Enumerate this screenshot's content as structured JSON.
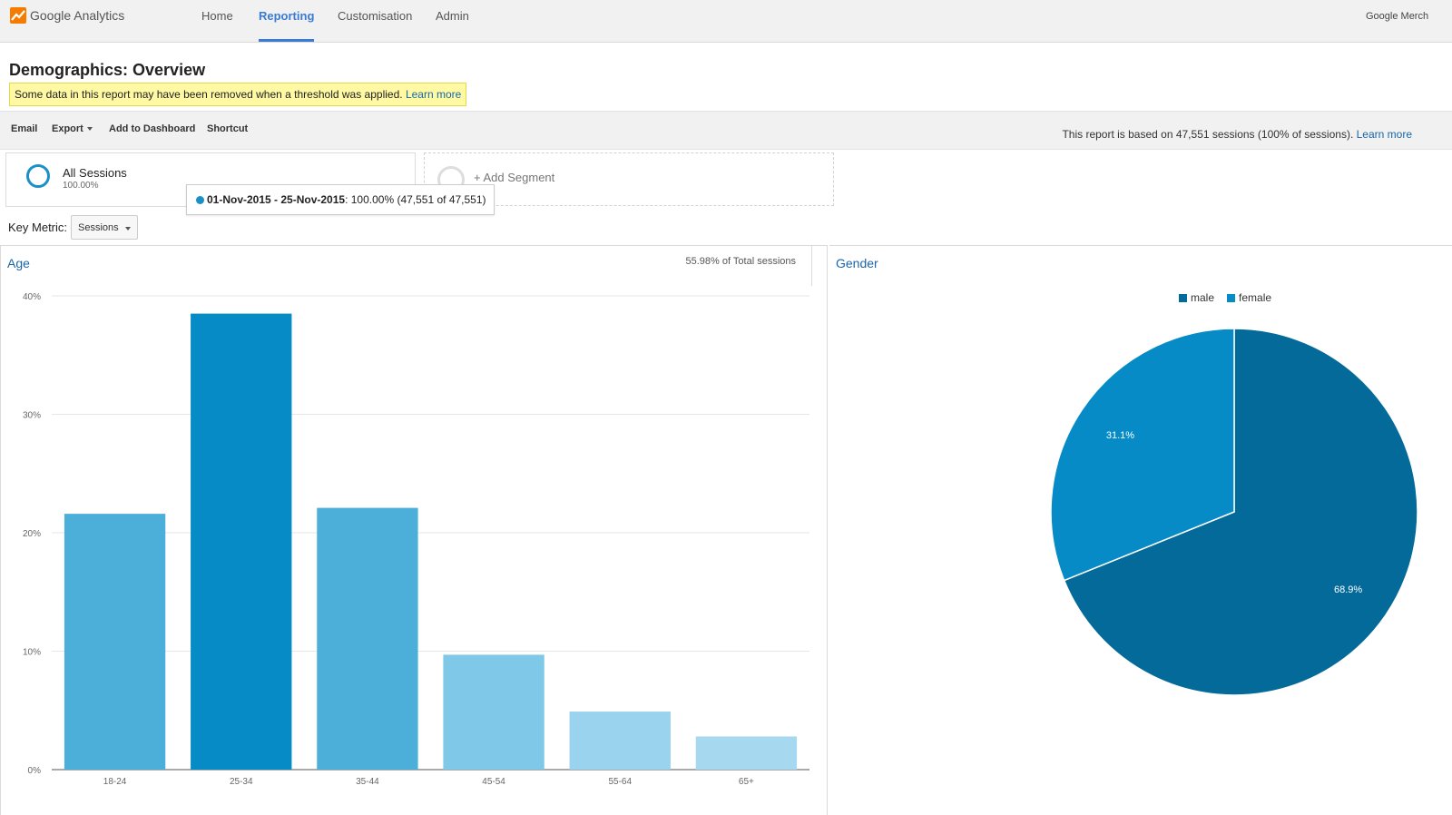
{
  "app": {
    "title": "Google Analytics",
    "account": "Google Merch"
  },
  "nav": [
    {
      "label": "Home"
    },
    {
      "label": "Reporting"
    },
    {
      "label": "Customisation"
    },
    {
      "label": "Admin"
    }
  ],
  "page": {
    "title": "Demographics: Overview",
    "notice_text": "Some data in this report may have been removed when a threshold was applied.",
    "notice_link": "Learn more"
  },
  "toolbar": {
    "email": "Email",
    "export": "Export",
    "add_dashboard": "Add to Dashboard",
    "shortcut": "Shortcut",
    "basis_text": "This report is based on 47,551 sessions (100% of sessions).",
    "basis_link": "Learn more"
  },
  "segment": {
    "name": "All Sessions",
    "percent": "100.00%",
    "add_label": "+ Add Segment",
    "tooltip_date": "01-Nov-2015 - 25-Nov-2015",
    "tooltip_value": ": 100.00% (47,551 of 47,551)"
  },
  "key_metric": {
    "label": "Key Metric:",
    "value": "Sessions"
  },
  "age_panel": {
    "title": "Age",
    "note": "55.98% of Total sessions"
  },
  "gender_panel": {
    "title": "Gender"
  },
  "colors": {
    "accent": "#3a7bd5",
    "link": "#1a66a8",
    "male": "#036a99",
    "female": "#078bc6"
  },
  "chart_data": [
    {
      "type": "bar",
      "categories": [
        "18-24",
        "25-34",
        "35-44",
        "45-54",
        "55-64",
        "65+"
      ],
      "values": [
        21.6,
        38.5,
        22.1,
        9.7,
        4.9,
        2.8
      ],
      "colors": [
        "#4cafd9",
        "#078bc6",
        "#4cafd9",
        "#80c8e7",
        "#99d3ed",
        "#a6d9f0"
      ],
      "yticks": [
        "0%",
        "10%",
        "20%",
        "30%",
        "40%"
      ],
      "ylim": [
        0,
        40
      ],
      "grid": true
    },
    {
      "type": "pie",
      "slices": [
        {
          "label": "male",
          "value": 68.9,
          "text": "68.9%",
          "color": "#036a99"
        },
        {
          "label": "female",
          "value": 31.1,
          "text": "31.1%",
          "color": "#078bc6"
        }
      ],
      "legend": "top"
    }
  ]
}
